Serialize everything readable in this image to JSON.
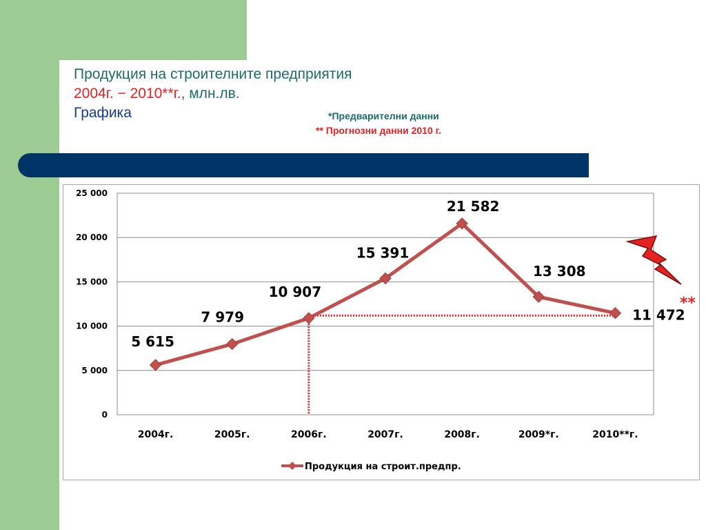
{
  "header": {
    "title_line1": "Продукция на строителните предприятия",
    "title_line2_red": "2004г. − 2010**г.",
    "title_line2_rest": ", млн.лв.",
    "title_line3": "Графика",
    "note_preliminary": "*Предварителни данни",
    "note_forecast": "** Прогнозни данни 2010 г."
  },
  "colors": {
    "green": "#9ccc94",
    "navy_bar": "#003366",
    "line": "#c0504d",
    "guide": "#d62728",
    "accent_red": "#e32222"
  },
  "chart_data": {
    "type": "line",
    "categories": [
      "2004г.",
      "2005г.",
      "2006г.",
      "2007г.",
      "2008г.",
      "2009*г.",
      "2010**г."
    ],
    "series": [
      {
        "name": "Продукция на строит.предпр.",
        "values": [
          5615,
          7979,
          10907,
          15391,
          21582,
          13308,
          11472
        ]
      }
    ],
    "data_labels": [
      "5 615",
      "7 979",
      "10 907",
      "15 391",
      "21 582",
      "13 308",
      "11 472"
    ],
    "y_ticks": [
      0,
      5000,
      10000,
      15000,
      20000,
      25000
    ],
    "y_tick_labels": [
      "0",
      "5 000",
      "10 000",
      "15 000",
      "20 000",
      "25 000"
    ],
    "ylim": [
      0,
      25000
    ],
    "grid": true,
    "legend": "bottom",
    "annotation": "**",
    "reference_value": 11200,
    "reference_category": "2006г.",
    "icon": "lightning-bolt-icon"
  }
}
